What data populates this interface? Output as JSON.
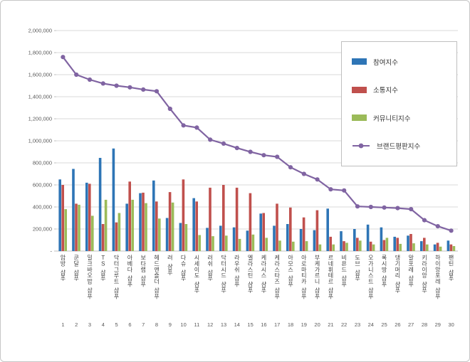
{
  "chart_data": {
    "type": "bar+line",
    "title": "",
    "categories": [
      "암방 샴푸",
      "쿤달 샴푸",
      "밀크바오밥 샴푸",
      "TS 샴푸",
      "닥터그루트 샴푸",
      "아베다 샴푸",
      "보타랩 샴푸",
      "헤드앤숄더 샴푸",
      "려 샴푸",
      "다슈 샴푸",
      "시세이도 샴푸",
      "러쉬 샴푸",
      "닥터시드 샴푸",
      "라우쉬 샴푸",
      "엘라스틴 샴푸",
      "케라시스 샴푸",
      "케라스타즈 샴푸",
      "아모스 샴푸",
      "아로마티카 샴푸",
      "부케가르니 샴푸",
      "르네휘테르 샴푸",
      "비욘드 샴푸",
      "도브 샴푸",
      "오가니스트 샴푸",
      "록시땅 샴푸",
      "댕기머리 샴푸",
      "알포레 샴푸",
      "키라이앙 샴푸",
      "하이앙포레 샴푸",
      "팬틴 샴푸"
    ],
    "ranks": [
      "1",
      "2",
      "3",
      "4",
      "5",
      "6",
      "7",
      "8",
      "9",
      "10",
      "11",
      "12",
      "13",
      "14",
      "15",
      "16",
      "17",
      "18",
      "19",
      "20",
      "21",
      "22",
      "23",
      "24",
      "25",
      "26",
      "27",
      "28",
      "29",
      "30"
    ],
    "series": [
      {
        "name": "참여지수",
        "key": "participation",
        "type": "bar",
        "color": "#2E75B6",
        "values": [
          650000,
          745000,
          620000,
          845000,
          930000,
          430000,
          525000,
          640000,
          300000,
          255000,
          480000,
          210000,
          230000,
          215000,
          185000,
          340000,
          230000,
          245000,
          200000,
          190000,
          385000,
          180000,
          200000,
          240000,
          215000,
          130000,
          140000,
          90000,
          60000,
          95000
        ]
      },
      {
        "name": "소통지수",
        "key": "communication",
        "type": "bar",
        "color": "#C0504D",
        "values": [
          600000,
          430000,
          610000,
          245000,
          260000,
          630000,
          530000,
          450000,
          535000,
          650000,
          450000,
          575000,
          600000,
          575000,
          525000,
          345000,
          430000,
          395000,
          305000,
          370000,
          130000,
          90000,
          120000,
          85000,
          100000,
          120000,
          155000,
          120000,
          75000,
          60000
        ]
      },
      {
        "name": "커뮤니티지수",
        "key": "community",
        "type": "bar",
        "color": "#9BBB59",
        "values": [
          380000,
          420000,
          320000,
          465000,
          345000,
          465000,
          435000,
          295000,
          440000,
          245000,
          145000,
          135000,
          140000,
          110000,
          150000,
          120000,
          95000,
          85000,
          90000,
          60000,
          60000,
          75000,
          95000,
          60000,
          120000,
          65000,
          70000,
          60000,
          40000,
          45000
        ]
      },
      {
        "name": "브랜드평판지수",
        "key": "reputation",
        "type": "line",
        "color": "#8064A2",
        "values": [
          1760000,
          1600000,
          1555000,
          1520000,
          1500000,
          1485000,
          1465000,
          1450000,
          1290000,
          1140000,
          1120000,
          1010000,
          975000,
          935000,
          900000,
          870000,
          855000,
          760000,
          700000,
          650000,
          560000,
          550000,
          405000,
          400000,
          395000,
          390000,
          380000,
          280000,
          225000,
          185000
        ]
      }
    ],
    "ylim": [
      0,
      2000000
    ],
    "ytick_step": 200000,
    "ytick_labels": [
      "-",
      "200,000",
      "400,000",
      "600,000",
      "800,000",
      "1,000,000",
      "1,200,000",
      "1,400,000",
      "1,600,000",
      "1,800,000",
      "2,000,000"
    ],
    "grid": true,
    "legend_position": "upper-right",
    "gridline_color": "#D9D9D9",
    "axis_text_color": "#595959",
    "category_text_color": "#404040"
  }
}
